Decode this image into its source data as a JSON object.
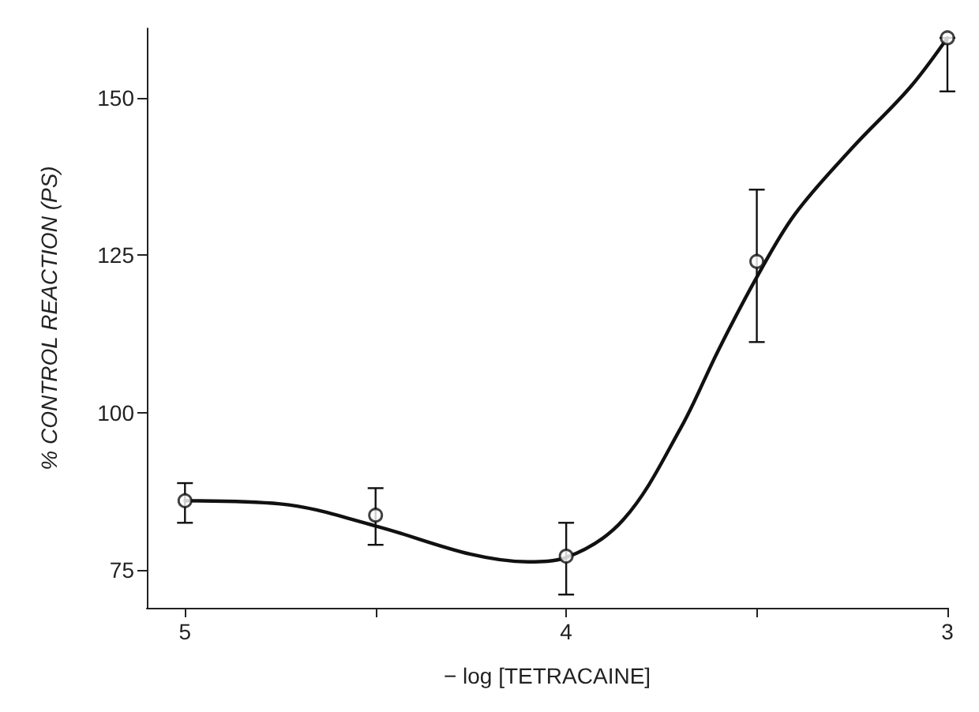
{
  "chart_data": {
    "type": "scatter",
    "xlabel": "− log [TETRACAINE]",
    "ylabel": "% CONTROL REACTION (PS)",
    "xlim": [
      5.1,
      3
    ],
    "ylim": [
      69,
      161
    ],
    "xticks": [
      5,
      {
        "value": 4.5,
        "label": null
      },
      4,
      {
        "value": 3.5,
        "label": null
      },
      3
    ],
    "yticks": [
      75,
      100,
      125,
      150
    ],
    "series": [
      {
        "type": "line",
        "color": "#111111",
        "marker": "none",
        "line_style": "solid",
        "x": [
          5,
          4.75,
          4.5,
          4.25,
          4.1,
          4,
          3.85,
          3.7,
          3.6,
          3.5,
          3.4,
          3.25,
          3.1,
          3
        ],
        "values": [
          86,
          85.5,
          82,
          77.5,
          76.3,
          77,
          83,
          97.5,
          110,
          121.5,
          131.5,
          142,
          151.5,
          159.5
        ]
      },
      {
        "color": "#111111",
        "marker": "circle",
        "x": [
          5,
          4.5,
          4,
          3.5,
          3
        ],
        "values": [
          86,
          83.7,
          77.2,
          124,
          159.5
        ],
        "errors": [
          [
            82.5,
            88.8
          ],
          [
            79,
            88
          ],
          [
            71.1,
            82.5
          ],
          [
            111.2,
            135.4
          ],
          [
            151,
            159.5
          ]
        ]
      }
    ]
  }
}
